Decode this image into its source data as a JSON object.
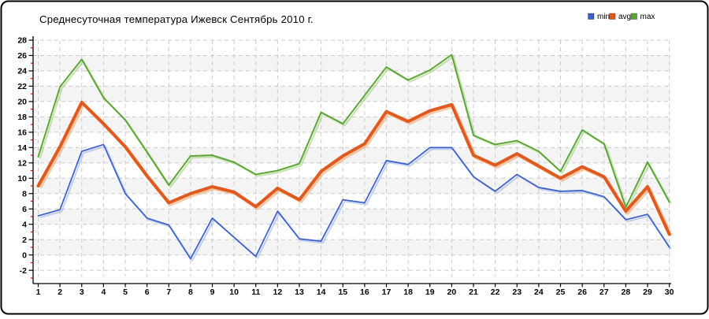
{
  "chart_data": {
    "type": "line",
    "title": "Среднесуточная температура Ижевск  Сентябрь 2010 г.",
    "xlabel": "",
    "ylabel": "",
    "x": [
      1,
      2,
      3,
      4,
      5,
      6,
      7,
      8,
      9,
      10,
      11,
      12,
      13,
      14,
      15,
      16,
      17,
      18,
      19,
      20,
      21,
      22,
      23,
      24,
      25,
      26,
      27,
      28,
      29,
      30
    ],
    "ylim": [
      -2,
      28
    ],
    "ytick_step": 2,
    "grid": true,
    "legend_position": "top-right",
    "series": [
      {
        "name": "min",
        "color": "#3a5ecb",
        "values": [
          5.1,
          5.9,
          13.5,
          14.4,
          8.0,
          4.8,
          3.9,
          -0.5,
          4.8,
          2.3,
          -0.2,
          5.7,
          2.1,
          1.8,
          7.2,
          6.8,
          12.3,
          11.8,
          14.0,
          14.0,
          10.2,
          8.3,
          10.5,
          8.8,
          8.3,
          8.4,
          7.6,
          4.6,
          5.3,
          1.0
        ]
      },
      {
        "name": "avg",
        "color": "#e05a20",
        "values": [
          9.0,
          14.1,
          19.9,
          17.1,
          14.1,
          10.3,
          6.8,
          8.0,
          8.9,
          8.2,
          6.3,
          8.7,
          7.2,
          10.9,
          12.9,
          14.5,
          18.7,
          17.4,
          18.8,
          19.6,
          13.0,
          11.7,
          13.2,
          11.6,
          10.0,
          11.5,
          10.2,
          5.7,
          8.9,
          2.7
        ]
      },
      {
        "name": "max",
        "color": "#58a332",
        "values": [
          12.8,
          21.9,
          25.5,
          20.5,
          17.6,
          13.4,
          9.1,
          12.9,
          13.0,
          12.1,
          10.5,
          11.0,
          11.9,
          18.6,
          17.1,
          20.8,
          24.5,
          22.8,
          24.1,
          26.1,
          15.6,
          14.4,
          14.9,
          13.5,
          10.9,
          16.3,
          14.5,
          6.2,
          12.1,
          6.9
        ]
      }
    ]
  },
  "style": {
    "border_color": "#000000",
    "axis_color": "#000000",
    "grid_color": "#cbcbcb",
    "stripe_color": "#f4f4f4",
    "minor_tick_color": "#dd0000",
    "shadow_colors": {
      "min": "#9ab0e8",
      "avg": "#f0a060",
      "max": "#9cd07a"
    }
  }
}
